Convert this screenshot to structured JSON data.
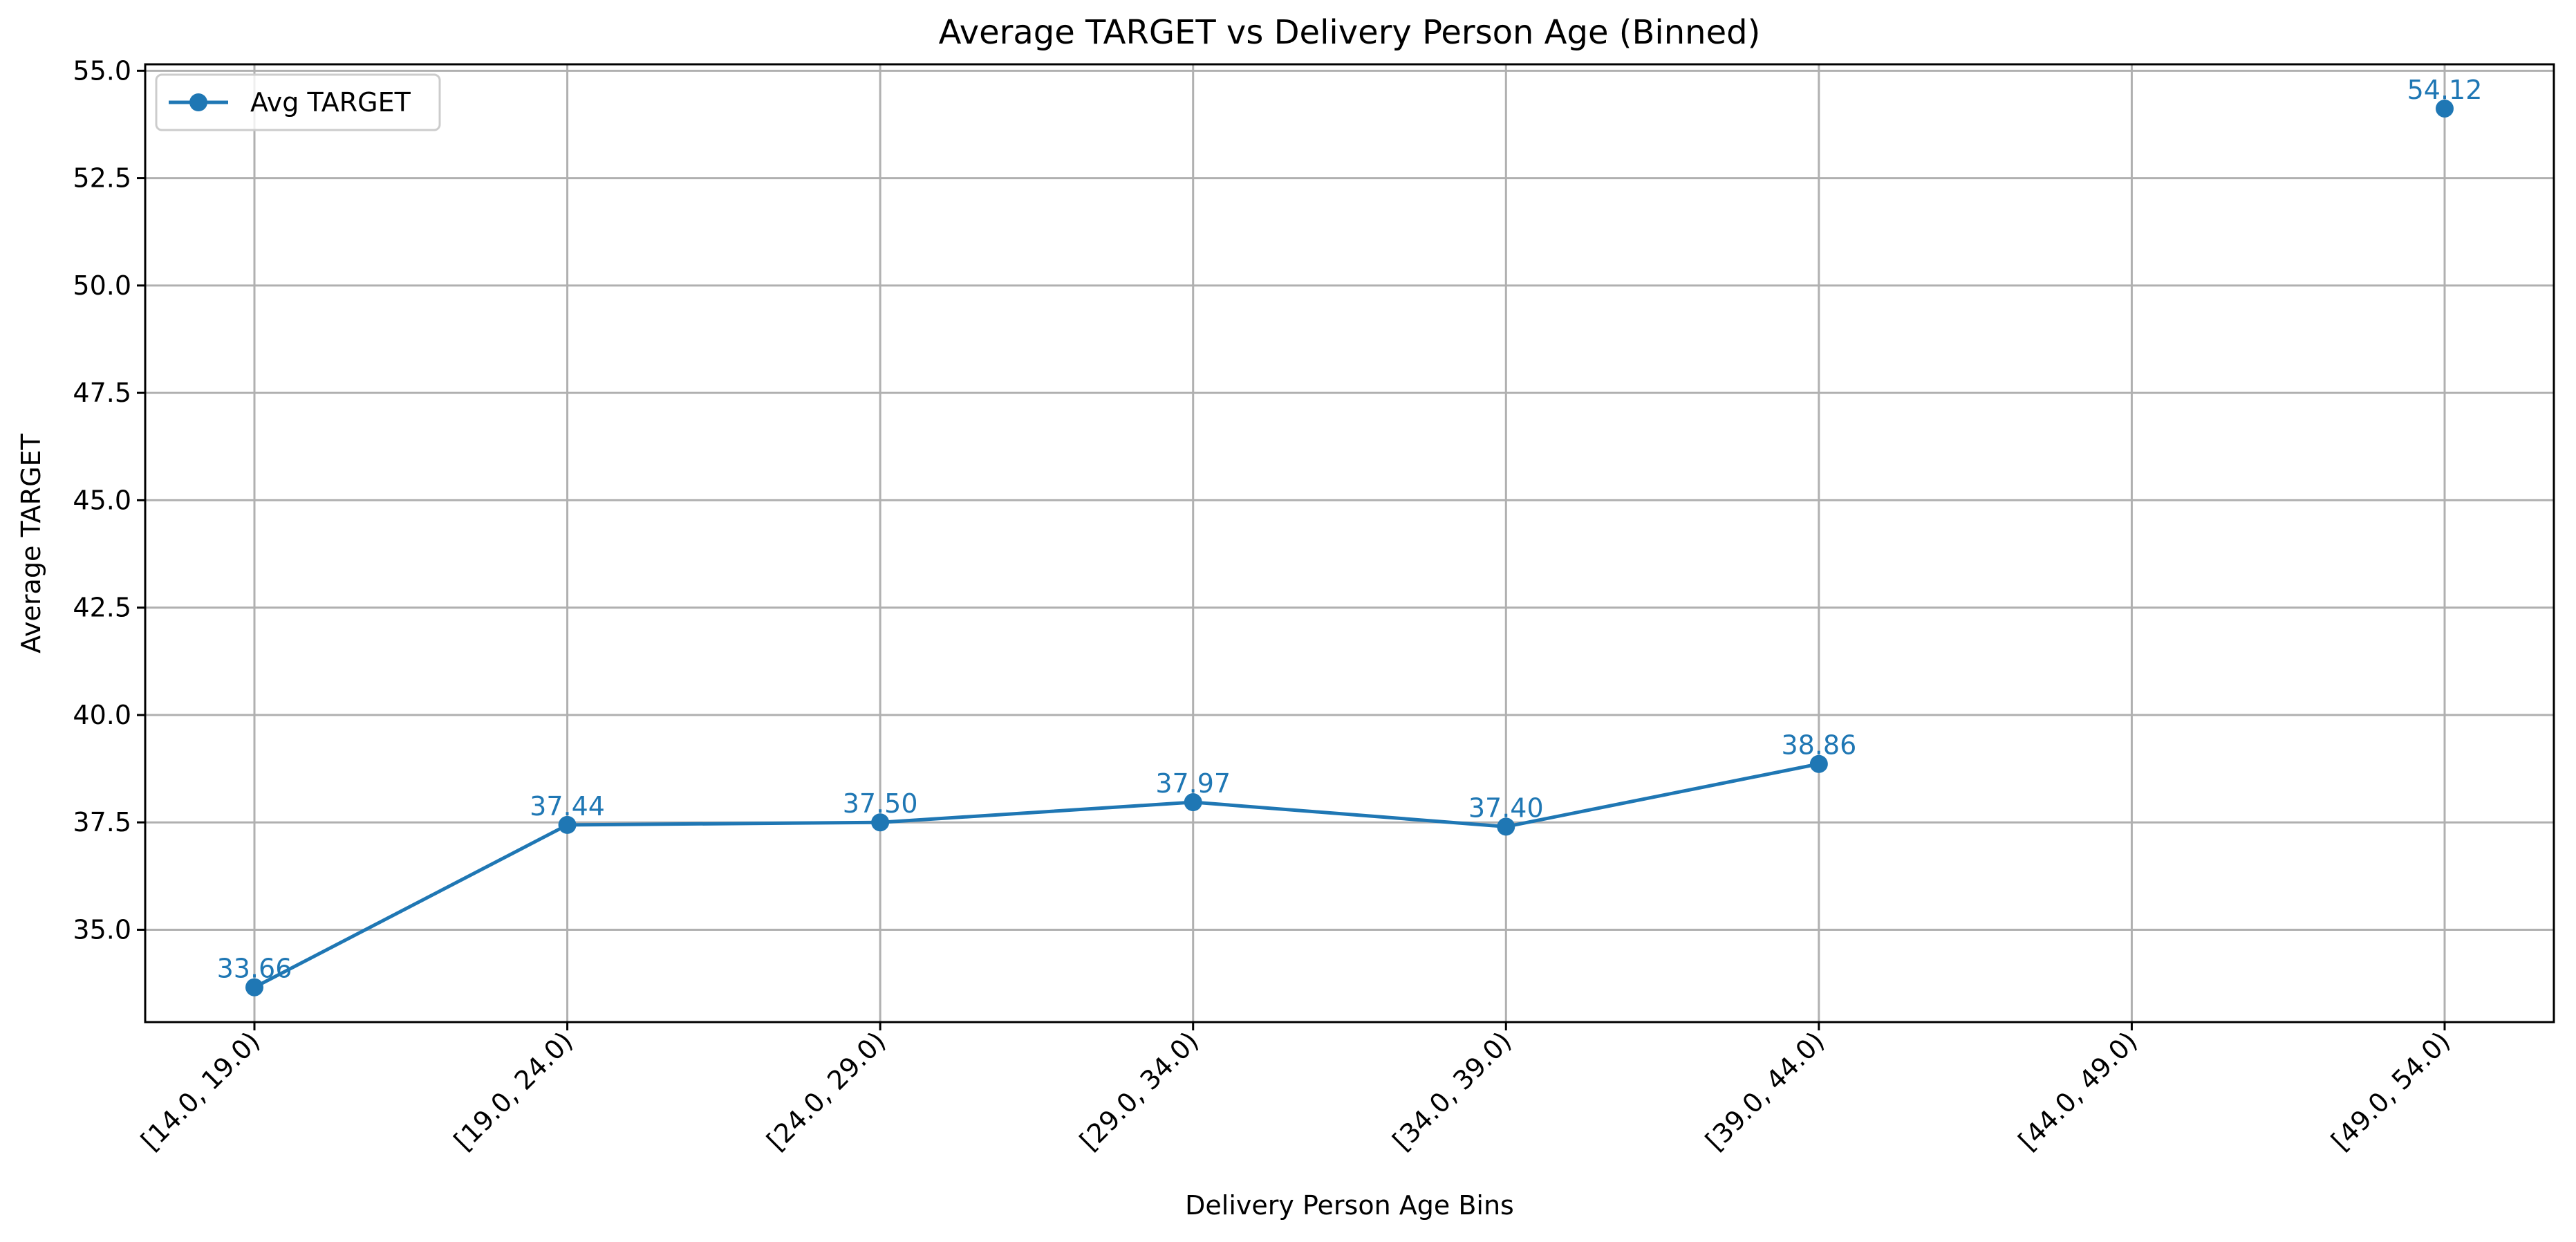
{
  "chart_data": {
    "type": "line",
    "title": "Average TARGET vs Delivery Person Age (Binned)",
    "xlabel": "Delivery Person Age Bins",
    "ylabel": "Average TARGET",
    "categories": [
      "[14.0, 19.0)",
      "[19.0, 24.0)",
      "[24.0, 29.0)",
      "[29.0, 34.0)",
      "[34.0, 39.0)",
      "[39.0, 44.0)",
      "[44.0, 49.0)",
      "[49.0, 54.0)"
    ],
    "series": [
      {
        "name": "Avg TARGET",
        "color": "#1f77b4",
        "values": [
          33.66,
          37.44,
          37.5,
          37.97,
          37.4,
          38.86,
          null,
          54.12
        ],
        "data_labels": [
          "33.66",
          "37.44",
          "37.50",
          "37.97",
          "37.40",
          "38.86",
          null,
          "54.12"
        ]
      }
    ],
    "ylim": [
      32.85,
      55.15
    ],
    "yticks": [
      35.0,
      37.5,
      40.0,
      42.5,
      45.0,
      47.5,
      50.0,
      52.5,
      55.0
    ],
    "ytick_labels": [
      "35.0",
      "37.5",
      "40.0",
      "42.5",
      "45.0",
      "47.5",
      "50.0",
      "52.5",
      "55.0"
    ],
    "grid": true,
    "legend_position": "top-left"
  }
}
